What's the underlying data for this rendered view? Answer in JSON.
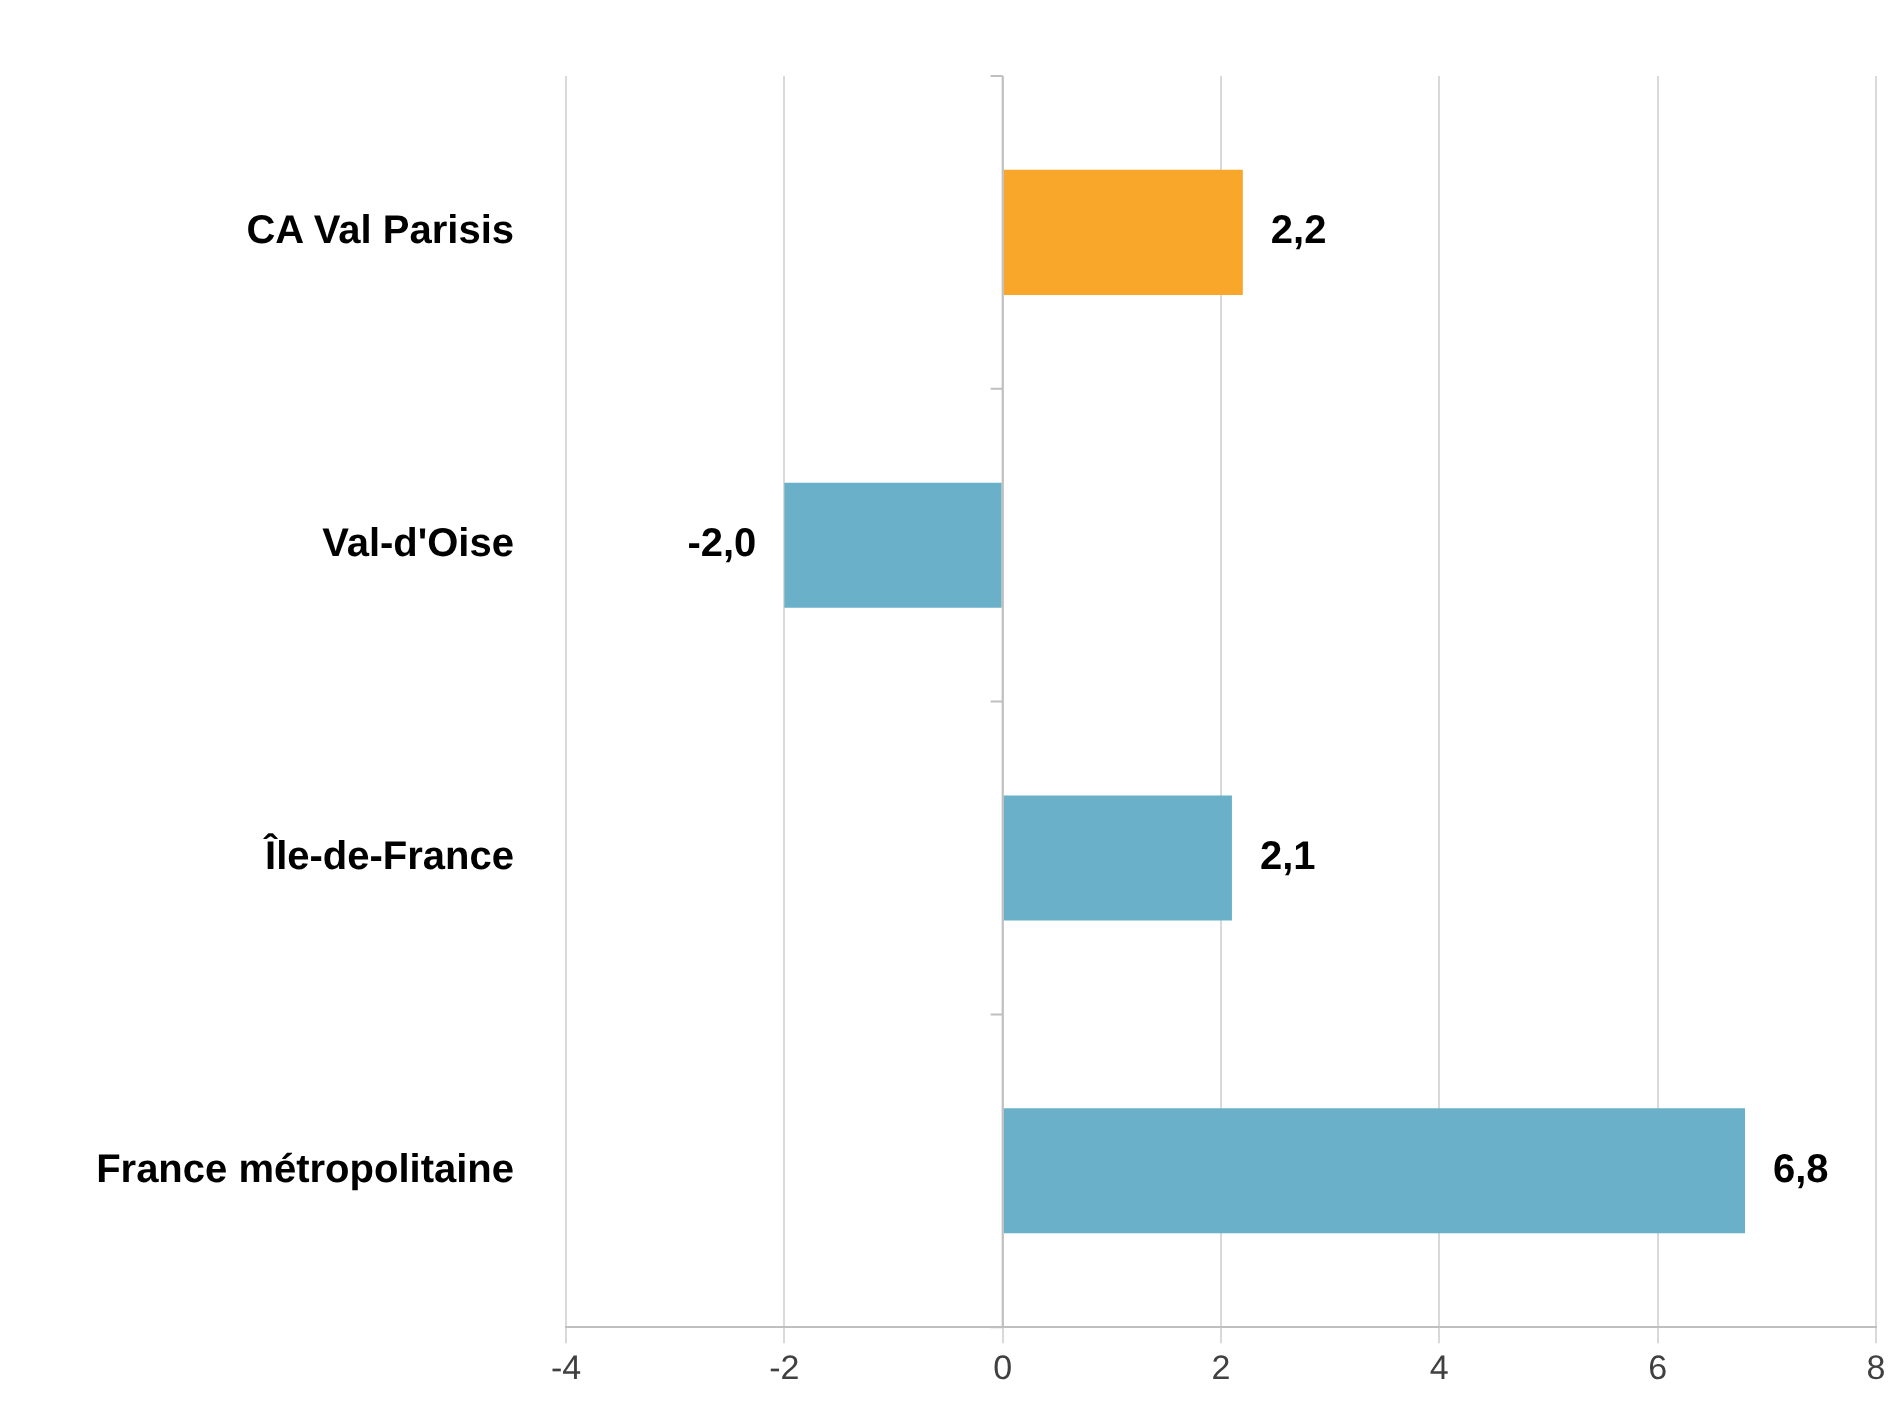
{
  "chart_data": {
    "type": "bar",
    "orientation": "horizontal",
    "categories": [
      "CA Val Parisis",
      "Val-d'Oise",
      "Île-de-France",
      "France métropolitaine"
    ],
    "values": [
      2.2,
      -2.0,
      2.1,
      6.8
    ],
    "colors": [
      "#f9a72b",
      "#6ab0c9",
      "#6ab0c9",
      "#6ab0c9"
    ],
    "value_labels": [
      "2,2",
      "-2,0",
      "2,1",
      "6,8"
    ],
    "xlim": [
      -4,
      8
    ],
    "xticks": [
      -4,
      -2,
      0,
      2,
      4,
      6,
      8
    ],
    "grid": "x",
    "legend": false
  }
}
